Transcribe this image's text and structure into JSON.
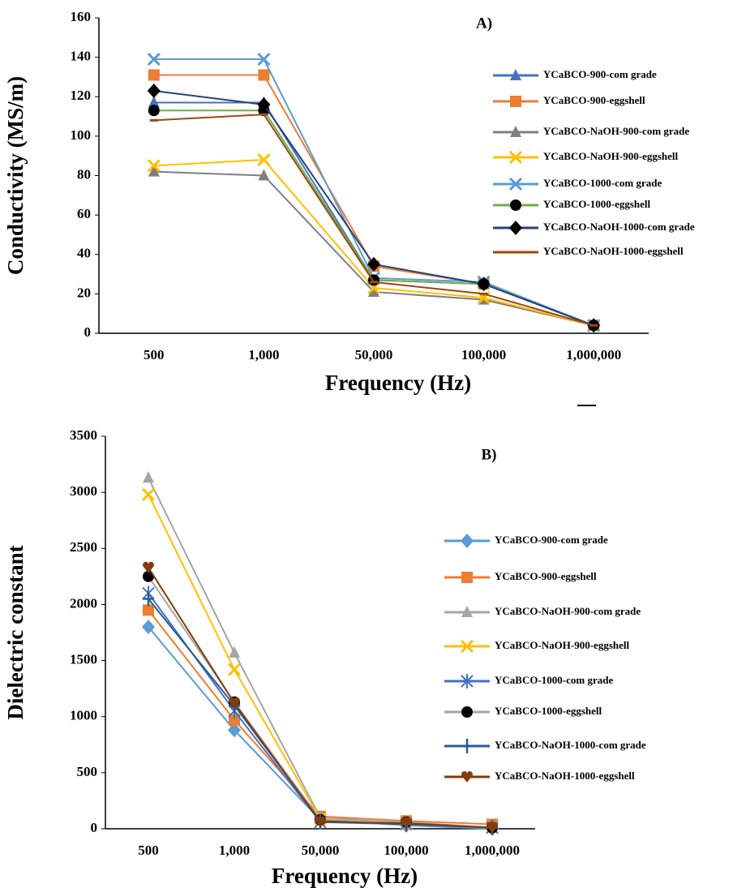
{
  "chart_data": [
    {
      "type": "line",
      "title": "A)",
      "x_label": "Frequency (Hz)",
      "y_label": "Conductivity (MS/m)",
      "categories": [
        "500",
        "1,000",
        "50,000",
        "100,000",
        "1,000,000"
      ],
      "ylim": [
        0,
        160
      ],
      "yticks": [
        0,
        20,
        40,
        60,
        80,
        100,
        120,
        140,
        160
      ],
      "grid": false,
      "legend": "right",
      "series": [
        {
          "name": "YCaBCO-900-com grade",
          "color": "#4472c4",
          "marker": "triangle",
          "values": [
            117,
            117,
            27,
            25,
            4
          ]
        },
        {
          "name": "YCaBCO-900-eggshell",
          "color": "#ed7d31",
          "marker": "square",
          "values": [
            131,
            131,
            34,
            25,
            4
          ]
        },
        {
          "name": "YCaBCO-NaOH-900-com grade",
          "color": "#7f7f7f",
          "marker": "triangle",
          "values": [
            82,
            80,
            21,
            17,
            4
          ]
        },
        {
          "name": "YCaBCO-NaOH-900-eggshell",
          "color": "#ffc000",
          "marker": "x",
          "values": [
            85,
            88,
            23,
            18,
            4
          ]
        },
        {
          "name": "YCaBCO-1000-com grade",
          "color": "#5b9bd5",
          "marker": "x",
          "values": [
            139,
            139,
            28,
            26,
            4
          ]
        },
        {
          "name": "YCaBCO-1000-eggshell",
          "color": "#70ad47",
          "marker": "circle",
          "marker_color": "#000000",
          "values": [
            113,
            113,
            27,
            25,
            4
          ]
        },
        {
          "name": "YCaBCO-NaOH-1000-com grade",
          "color": "#264478",
          "marker": "diamond",
          "marker_color": "#000000",
          "values": [
            123,
            116,
            35,
            25,
            4
          ]
        },
        {
          "name": "YCaBCO-NaOH-1000-eggshell",
          "color": "#9e480e",
          "marker": "dash",
          "values": [
            108,
            111,
            26,
            20,
            4
          ]
        }
      ]
    },
    {
      "type": "line",
      "title": "B)",
      "x_label": "Frequency (Hz)",
      "y_label": "Dielectric constant",
      "categories": [
        "500",
        "1,000",
        "50,000",
        "100,000",
        "1,000,000"
      ],
      "ylim": [
        0,
        3500
      ],
      "yticks": [
        0,
        500,
        1000,
        1500,
        2000,
        2500,
        3000,
        3500
      ],
      "grid": false,
      "legend": "right",
      "series": [
        {
          "name": "YCaBCO-900-com grade",
          "color": "#5b9bd5",
          "marker": "diamond",
          "values": [
            1800,
            880,
            80,
            30,
            0
          ]
        },
        {
          "name": "YCaBCO-900-eggshell",
          "color": "#ed7d31",
          "marker": "square",
          "values": [
            1950,
            970,
            110,
            70,
            40
          ]
        },
        {
          "name": "YCaBCO-NaOH-900-com grade",
          "color": "#a5a5a5",
          "marker": "triangle",
          "values": [
            3130,
            1570,
            100,
            50,
            10
          ]
        },
        {
          "name": "YCaBCO-NaOH-900-eggshell",
          "color": "#ffc000",
          "marker": "x",
          "values": [
            2980,
            1420,
            90,
            40,
            10
          ]
        },
        {
          "name": "YCaBCO-1000-com grade",
          "color": "#4472c4",
          "marker": "star",
          "values": [
            2100,
            1050,
            60,
            40,
            10
          ]
        },
        {
          "name": "YCaBCO-1000-eggshell",
          "color": "#a5a5a5",
          "marker": "circle",
          "marker_color": "#000000",
          "values": [
            2250,
            1130,
            80,
            60,
            10
          ]
        },
        {
          "name": "YCaBCO-NaOH-1000-com grade",
          "color": "#255e91",
          "marker": "plus",
          "values": [
            2050,
            1100,
            70,
            40,
            10
          ]
        },
        {
          "name": "YCaBCO-NaOH-1000-eggshell",
          "color": "#843c0c",
          "marker": "heart",
          "values": [
            2330,
            1120,
            60,
            50,
            10
          ]
        }
      ]
    }
  ]
}
